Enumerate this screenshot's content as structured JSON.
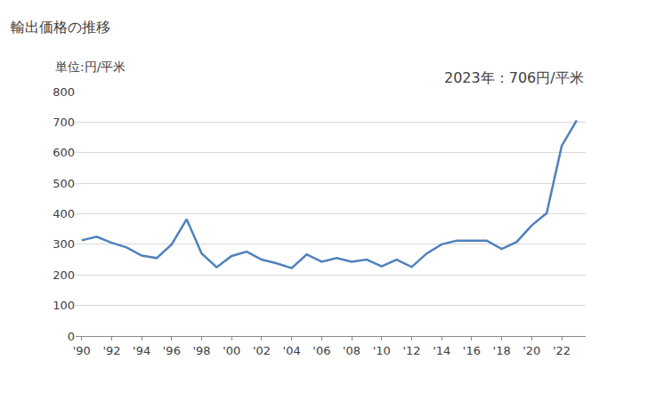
{
  "chart_data": {
    "type": "line",
    "title": "輸出価格の推移",
    "ylabel": "単位:円/平米",
    "annotations": [
      "2023年：706円/平米"
    ],
    "x": [
      1990,
      1991,
      1992,
      1993,
      1994,
      1995,
      1996,
      1997,
      1998,
      1999,
      2000,
      2001,
      2002,
      2003,
      2004,
      2005,
      2006,
      2007,
      2008,
      2009,
      2010,
      2011,
      2012,
      2013,
      2014,
      2015,
      2016,
      2017,
      2018,
      2019,
      2020,
      2021,
      2022,
      2023
    ],
    "values": [
      313,
      325,
      305,
      290,
      263,
      255,
      300,
      382,
      270,
      225,
      262,
      276,
      250,
      238,
      222,
      267,
      243,
      255,
      243,
      250,
      228,
      250,
      226,
      270,
      300,
      312,
      312,
      312,
      285,
      308,
      362,
      402,
      622,
      706
    ],
    "color": "#4f81bd",
    "xlim": [
      1989.6,
      2023.6
    ],
    "xticks": [
      {
        "value": 1990,
        "label": "'90"
      },
      {
        "value": 1992,
        "label": "'92"
      },
      {
        "value": 1994,
        "label": "'94"
      },
      {
        "value": 1996,
        "label": "'96"
      },
      {
        "value": 1998,
        "label": "'98"
      },
      {
        "value": 2000,
        "label": "'00"
      },
      {
        "value": 2002,
        "label": "'02"
      },
      {
        "value": 2004,
        "label": "'04"
      },
      {
        "value": 2006,
        "label": "'06"
      },
      {
        "value": 2008,
        "label": "'08"
      },
      {
        "value": 2010,
        "label": "'10"
      },
      {
        "value": 2012,
        "label": "'12"
      },
      {
        "value": 2014,
        "label": "'14"
      },
      {
        "value": 2016,
        "label": "'16"
      },
      {
        "value": 2018,
        "label": "'18"
      },
      {
        "value": 2020,
        "label": "'20"
      },
      {
        "value": 2022,
        "label": "'22"
      }
    ],
    "ylim": [
      0,
      800
    ],
    "yticks": [
      0,
      100,
      200,
      300,
      400,
      500,
      600,
      700,
      800
    ],
    "grid": true
  }
}
